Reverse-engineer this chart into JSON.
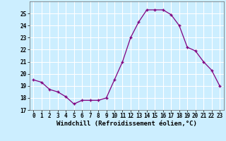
{
  "x": [
    0,
    1,
    2,
    3,
    4,
    5,
    6,
    7,
    8,
    9,
    10,
    11,
    12,
    13,
    14,
    15,
    16,
    17,
    18,
    19,
    20,
    21,
    22,
    23
  ],
  "y": [
    19.5,
    19.3,
    18.7,
    18.5,
    18.1,
    17.5,
    17.8,
    17.8,
    17.8,
    18.0,
    19.5,
    21.0,
    23.0,
    24.3,
    25.3,
    25.3,
    25.3,
    24.9,
    24.0,
    22.2,
    21.9,
    21.0,
    20.3,
    19.0
  ],
  "xlabel": "Windchill (Refroidissement éolien,°C)",
  "ylim": [
    17,
    26
  ],
  "yticks": [
    17,
    18,
    19,
    20,
    21,
    22,
    23,
    24,
    25
  ],
  "xticks": [
    0,
    1,
    2,
    3,
    4,
    5,
    6,
    7,
    8,
    9,
    10,
    11,
    12,
    13,
    14,
    15,
    16,
    17,
    18,
    19,
    20,
    21,
    22,
    23
  ],
  "line_color": "#800080",
  "marker": "+",
  "bg_color": "#cceeff",
  "grid_color": "#ffffff",
  "label_fontsize": 6.5,
  "tick_fontsize": 5.5
}
